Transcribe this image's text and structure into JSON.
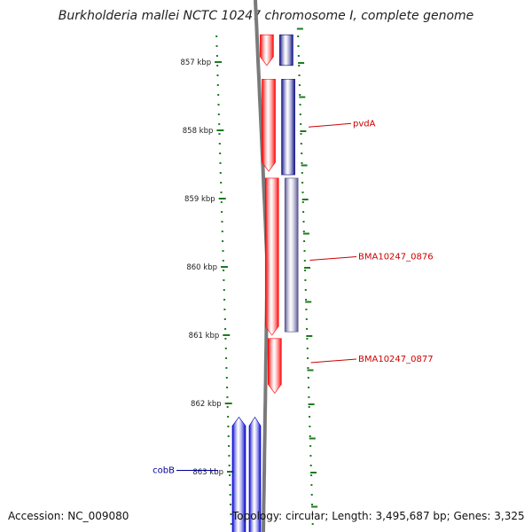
{
  "title": "Burkholderia mallei NCTC 10247 chromosome I, complete genome",
  "accession_label": "Accession: NC_009080",
  "stats_label": "Topology: circular; Length: 3,495,687 bp; Genes: 3,325",
  "colors": {
    "forward_gene": "#ff0000",
    "reverse_gene": "#0000cc",
    "dark_reverse_gene": "#0a0a80",
    "muted_reverse_gene": "#55508f",
    "gene_label": "#cc0000",
    "reverse_gene_label": "#000099",
    "tick": "#1f7a1f",
    "backbone": "#7a7a7a"
  },
  "chart_data": {
    "type": "genome-map",
    "kbp_marks": [
      {
        "label": "857 kbp",
        "value": 857
      },
      {
        "label": "858 kbp",
        "value": 858
      },
      {
        "label": "859 kbp",
        "value": 859
      },
      {
        "label": "860 kbp",
        "value": 860
      },
      {
        "label": "861 kbp",
        "value": 861
      },
      {
        "label": "862 kbp",
        "value": 862
      },
      {
        "label": "863 kbp",
        "value": 863
      }
    ],
    "visible_range_kbp": [
      856.6,
      863.9
    ],
    "genes": [
      {
        "strand": "+",
        "start": 856.6,
        "end": 857.05,
        "color": "forward_gene"
      },
      {
        "strand": "+",
        "start": 857.25,
        "end": 858.6,
        "color": "forward_gene"
      },
      {
        "strand": "+",
        "start": 858.7,
        "end": 861.0,
        "color": "forward_gene"
      },
      {
        "strand": "+",
        "start": 861.05,
        "end": 861.85,
        "color": "forward_gene"
      },
      {
        "strand": "-",
        "start": 856.6,
        "end": 857.05,
        "color": "dark_reverse_gene"
      },
      {
        "strand": "-",
        "start": 857.25,
        "end": 858.65,
        "color": "dark_reverse_gene"
      },
      {
        "strand": "-",
        "start": 858.7,
        "end": 860.95,
        "color": "muted_reverse_gene"
      },
      {
        "strand": "-",
        "start": 862.2,
        "end": 863.9,
        "color": "reverse_gene",
        "track": "outer"
      },
      {
        "strand": "-",
        "start": 862.2,
        "end": 863.9,
        "color": "reverse_gene",
        "track": "inner"
      }
    ],
    "gene_labels": [
      {
        "text": "pvdA",
        "kbp": 857.9,
        "side": "right",
        "color": "gene_label"
      },
      {
        "text": "BMA10247_0876",
        "kbp": 859.85,
        "side": "right",
        "color": "gene_label"
      },
      {
        "text": "BMA10247_0877",
        "kbp": 861.35,
        "side": "right",
        "color": "gene_label"
      },
      {
        "text": "cobB",
        "kbp": 862.98,
        "side": "left",
        "color": "reverse_gene_label"
      }
    ]
  }
}
